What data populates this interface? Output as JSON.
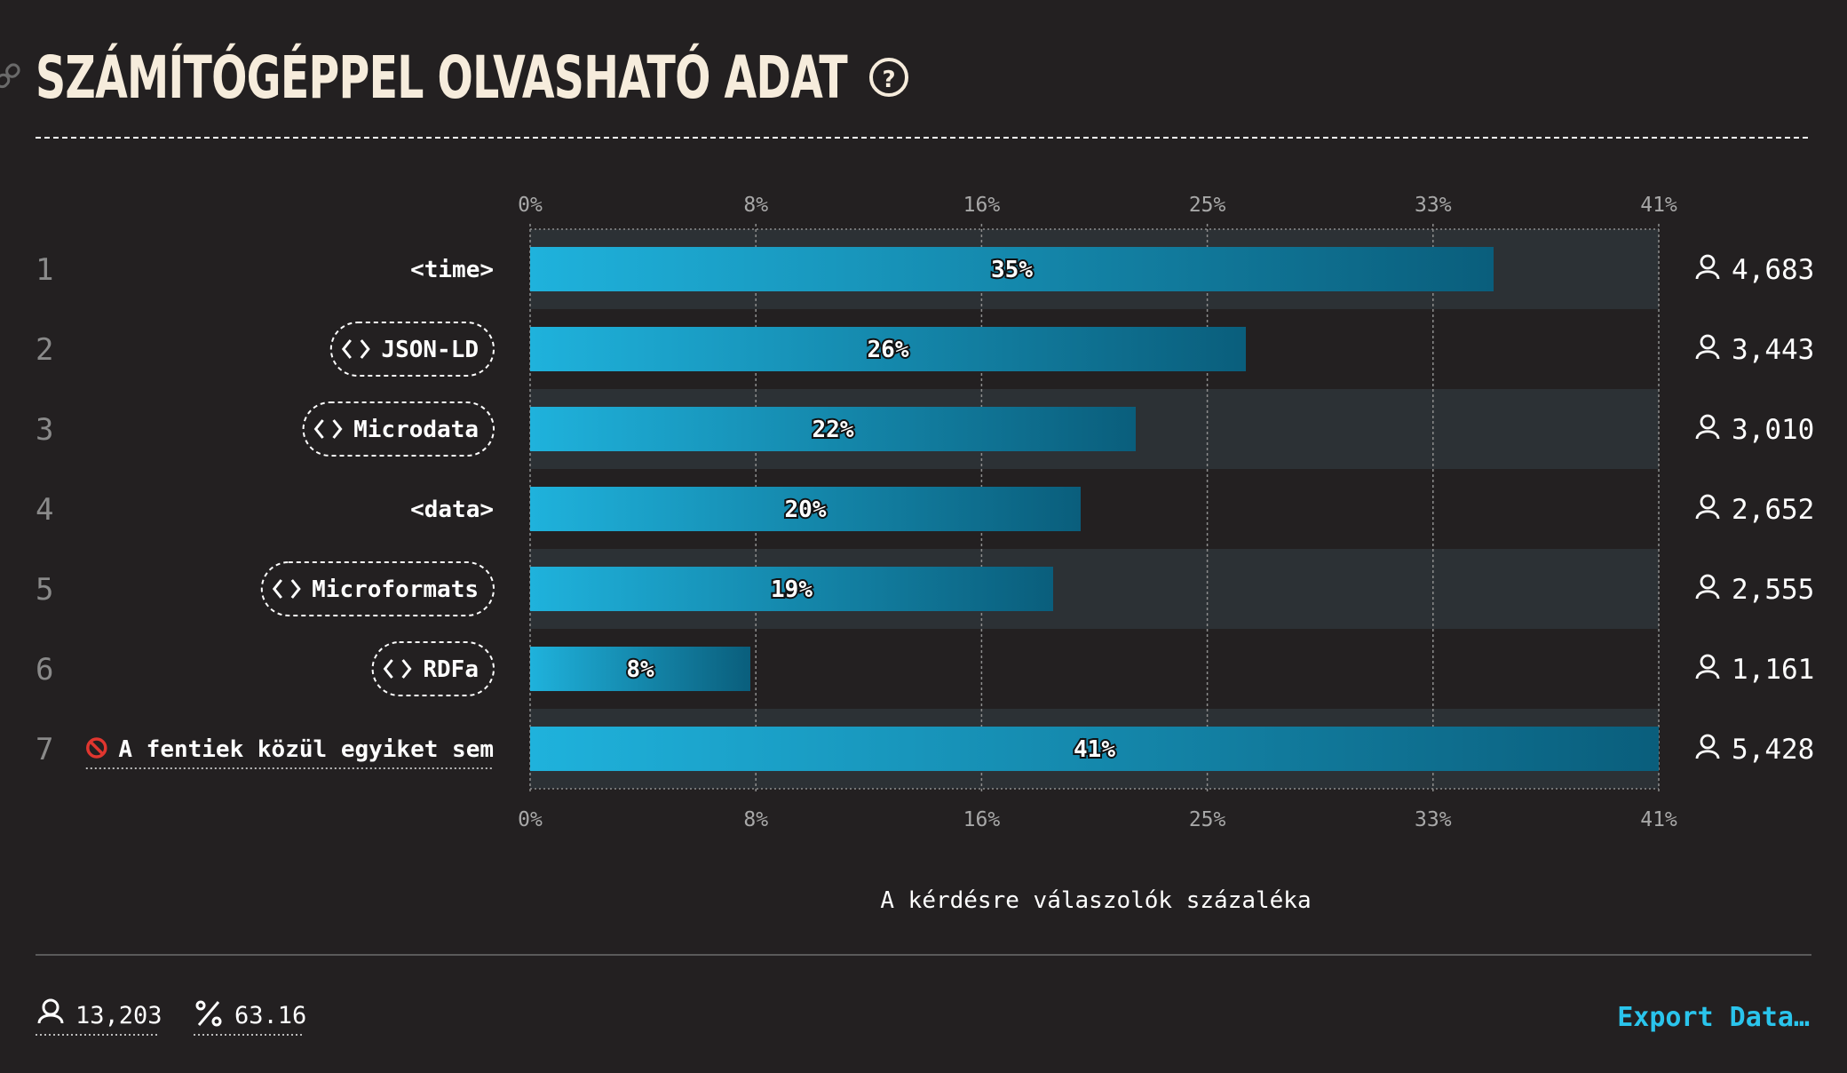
{
  "title": "SZÁMÍTÓGÉPPEL OLVASHATÓ ADAT",
  "icons": {
    "help": "help-circle-icon",
    "anchor": "link-icon",
    "code": "code-brackets-icon",
    "none": "prohibited-icon",
    "person": "person-icon",
    "percent": "percent-icon"
  },
  "colors": {
    "background": "#232021",
    "title": "#f6ecdc",
    "bar_start": "#1fb2dc",
    "bar_end": "#0a5e7c",
    "row_band": "#2c3135",
    "accent": "#2ac4ec"
  },
  "chart_data": {
    "type": "bar",
    "orientation": "horizontal",
    "ranks": [
      "1",
      "2",
      "3",
      "4",
      "5",
      "6",
      "7"
    ],
    "categories": [
      "<time>",
      "JSON-LD",
      "Microdata",
      "<data>",
      "Microformats",
      "RDFa",
      "A fentiek közül egyiket sem"
    ],
    "category_style": [
      "plain",
      "code",
      "code",
      "plain",
      "code",
      "code",
      "none"
    ],
    "values": [
      35,
      26,
      22,
      20,
      19,
      8,
      41
    ],
    "value_labels": [
      "35%",
      "26%",
      "22%",
      "20%",
      "19%",
      "8%",
      "41%"
    ],
    "counts": [
      "4,683",
      "3,443",
      "3,010",
      "2,652",
      "2,555",
      "1,161",
      "5,428"
    ],
    "x_ticks": [
      "0%",
      "8%",
      "16%",
      "25%",
      "33%",
      "41%"
    ],
    "xlim": [
      0,
      41
    ],
    "xlabel": "A kérdésre válaszolók százaléka",
    "grid": true
  },
  "footer": {
    "respondents": "13,203",
    "percent": "63.16",
    "export_label": "Export Data…"
  }
}
